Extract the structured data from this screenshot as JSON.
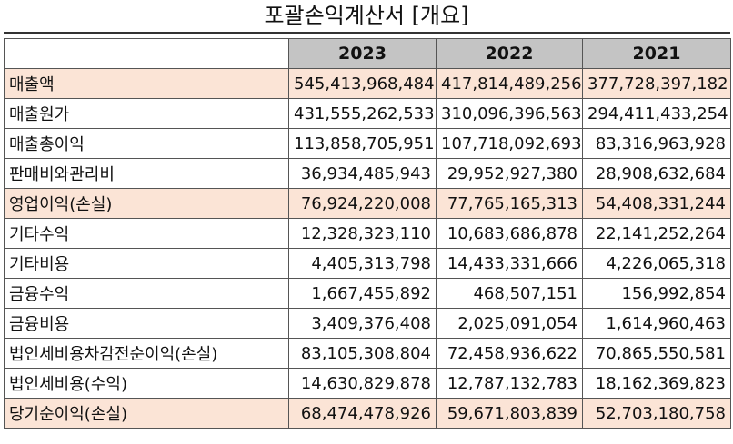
{
  "title": "포괄손익계산서 [개요]",
  "columns": [
    "2023",
    "2022",
    "2021"
  ],
  "rows": [
    {
      "label": "매출액",
      "values": [
        "545,413,968,484",
        "417,814,489,256",
        "377,728,397,182"
      ],
      "highlight": true
    },
    {
      "label": "매출원가",
      "values": [
        "431,555,262,533",
        "310,096,396,563",
        "294,411,433,254"
      ],
      "highlight": false
    },
    {
      "label": "매출총이익",
      "values": [
        "113,858,705,951",
        "107,718,092,693",
        "83,316,963,928"
      ],
      "highlight": false
    },
    {
      "label": "판매비와관리비",
      "values": [
        "36,934,485,943",
        "29,952,927,380",
        "28,908,632,684"
      ],
      "highlight": false
    },
    {
      "label": "영업이익(손실)",
      "values": [
        "76,924,220,008",
        "77,765,165,313",
        "54,408,331,244"
      ],
      "highlight": true
    },
    {
      "label": "기타수익",
      "values": [
        "12,328,323,110",
        "10,683,686,878",
        "22,141,252,264"
      ],
      "highlight": false
    },
    {
      "label": "기타비용",
      "values": [
        "4,405,313,798",
        "14,433,331,666",
        "4,226,065,318"
      ],
      "highlight": false
    },
    {
      "label": "금융수익",
      "values": [
        "1,667,455,892",
        "468,507,151",
        "156,992,854"
      ],
      "highlight": false
    },
    {
      "label": "금융비용",
      "values": [
        "3,409,376,408",
        "2,025,091,054",
        "1,614,960,463"
      ],
      "highlight": false
    },
    {
      "label": "법인세비용차감전순이익(손실)",
      "values": [
        "83,105,308,804",
        "72,458,936,622",
        "70,865,550,581"
      ],
      "highlight": false
    },
    {
      "label": "법인세비용(수익)",
      "values": [
        "14,630,829,878",
        "12,787,132,783",
        "18,162,369,823"
      ],
      "highlight": false
    },
    {
      "label": "당기순이익(손실)",
      "values": [
        "68,474,478,926",
        "59,671,803,839",
        "52,703,180,758"
      ],
      "highlight": true
    }
  ],
  "colors": {
    "highlight_row": "#fbe4d6",
    "header_bg": "#c4c4c4"
  }
}
